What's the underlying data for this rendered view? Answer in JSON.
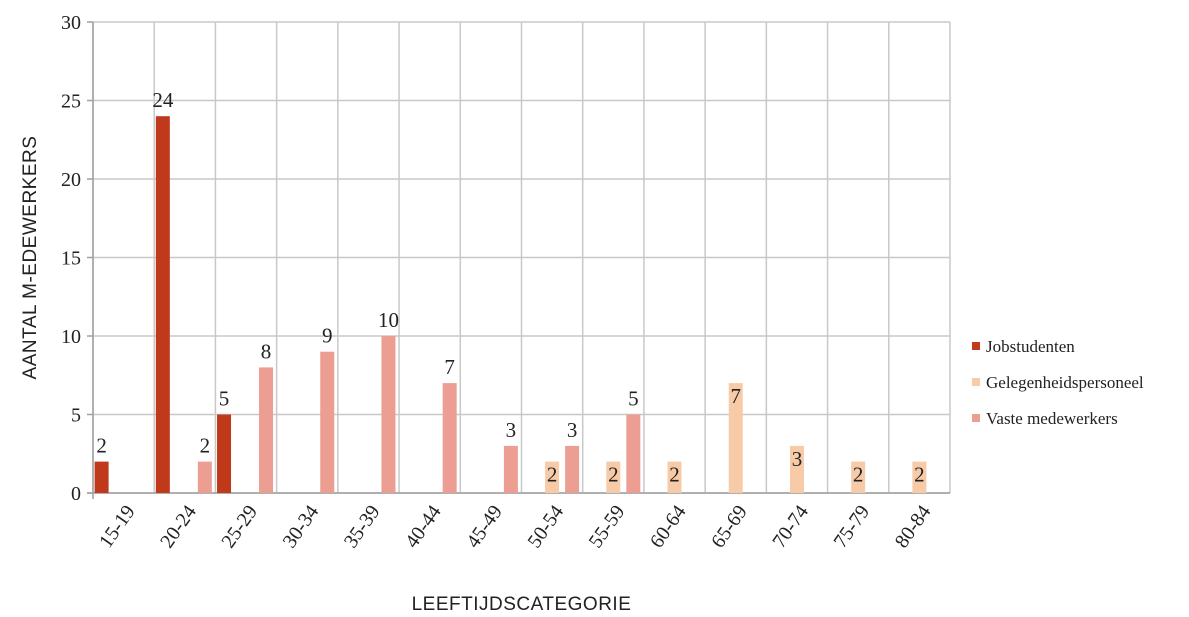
{
  "chart_data": {
    "type": "bar",
    "categories": [
      "15-19",
      "20-24",
      "25-29",
      "30-34",
      "35-39",
      "40-44",
      "45-49",
      "50-54",
      "55-59",
      "60-64",
      "65-69",
      "70-74",
      "75-79",
      "80-84"
    ],
    "series": [
      {
        "name": "Jobstudenten",
        "color": "#c0391b",
        "values": [
          2,
          24,
          5,
          null,
          null,
          null,
          null,
          null,
          null,
          null,
          null,
          null,
          null,
          null
        ]
      },
      {
        "name": "Gelegenheidspersoneel",
        "color": "#f7cba8",
        "values": [
          null,
          null,
          null,
          null,
          null,
          null,
          null,
          2,
          2,
          2,
          7,
          3,
          2,
          2
        ]
      },
      {
        "name": "Vaste medewerkers",
        "color": "#eb9e91",
        "values": [
          null,
          2,
          8,
          9,
          10,
          7,
          3,
          3,
          5,
          null,
          null,
          null,
          null,
          null
        ]
      }
    ],
    "xlabel": "LEEFTIJDSCATEGORIE",
    "ylabel": "AANTAL M-EDEWERKERS",
    "ylim": [
      0,
      30
    ],
    "yticks": [
      0,
      5,
      10,
      15,
      20,
      25,
      30
    ],
    "grid": true,
    "legend_position": "right"
  }
}
